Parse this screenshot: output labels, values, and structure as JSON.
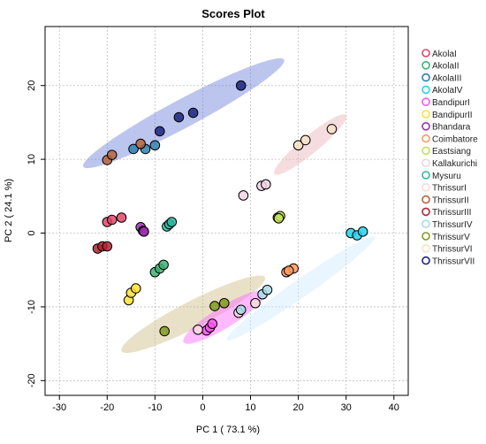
{
  "chart_data": {
    "type": "scatter",
    "title": "Scores Plot",
    "xlabel": "PC 1 ( 73.1 %)",
    "ylabel": "PC 2 ( 24.1 %)",
    "xlim": [
      -33,
      43
    ],
    "ylim": [
      -22,
      28
    ],
    "xticks": [
      -30,
      -20,
      -10,
      0,
      10,
      20,
      30,
      40
    ],
    "yticks": [
      -20,
      -10,
      0,
      10,
      20
    ],
    "x_tick_labels": [
      "-30",
      "-20",
      "-10",
      "0",
      "10",
      "20",
      "30",
      "40"
    ],
    "y_tick_labels": [
      "-20",
      "-10",
      "0",
      "10",
      "20"
    ],
    "grid": true,
    "legend_position": "right",
    "ellipses": [
      {
        "color": "#6b7fd7",
        "from": [
          -25,
          9
        ],
        "to": [
          17,
          23.5
        ],
        "width": 1.6
      },
      {
        "color": "#e8b4b8",
        "from": [
          15,
          8
        ],
        "to": [
          30,
          16
        ],
        "width": 1.0
      },
      {
        "color": "#cdbd86",
        "from": [
          -17,
          -16
        ],
        "to": [
          13,
          -6
        ],
        "width": 1.5
      },
      {
        "color": "#ff66ff",
        "from": [
          -4,
          -14.8
        ],
        "to": [
          13,
          -8
        ],
        "width": 1.2
      },
      {
        "color": "#cfe8ff",
        "from": [
          5,
          -14.5
        ],
        "to": [
          36,
          -0.5
        ],
        "width": 1.0
      }
    ],
    "series": [
      {
        "name": "AkolaI",
        "color": "#e0456a",
        "points": [
          [
            -20,
            1.5
          ],
          [
            -19,
            1.8
          ],
          [
            -17,
            2.1
          ]
        ]
      },
      {
        "name": "AkolaII",
        "color": "#3cb371",
        "points": [
          [
            -10,
            -5.3
          ],
          [
            -9,
            -4.8
          ],
          [
            -8.2,
            -4.3
          ]
        ]
      },
      {
        "name": "AkolaIII",
        "color": "#2f7fb0",
        "points": [
          [
            -10,
            11.9
          ],
          [
            -12,
            11.4
          ],
          [
            -14.5,
            11.4
          ]
        ]
      },
      {
        "name": "AkolaIV",
        "color": "#22d3ee",
        "points": [
          [
            31,
            0
          ],
          [
            32.3,
            -0.3
          ],
          [
            33.5,
            0.2
          ]
        ]
      },
      {
        "name": "BandipurI",
        "color": "#ff55ee",
        "points": [
          [
            0.8,
            -13.2
          ],
          [
            1.5,
            -12.8
          ],
          [
            2,
            -12.3
          ]
        ]
      },
      {
        "name": "BandipurII",
        "color": "#ffe033",
        "points": [
          [
            -15.5,
            -9.1
          ],
          [
            -15,
            -8.1
          ],
          [
            -14,
            -7.5
          ]
        ]
      },
      {
        "name": "Bhandara",
        "color": "#9b2fae",
        "points": [
          [
            -13,
            0.8
          ],
          [
            -12.5,
            0.3
          ],
          [
            -12.3,
            0.2
          ]
        ]
      },
      {
        "name": "Coimbatore",
        "color": "#ff9a62",
        "points": [
          [
            17.5,
            -5.3
          ],
          [
            19,
            -4.8
          ],
          [
            18,
            -5.1
          ]
        ]
      },
      {
        "name": "Eastsiang",
        "color": "#bfe05a",
        "points": [
          [
            15.7,
            2.1
          ],
          [
            16.2,
            2.3
          ],
          [
            15.9,
            2.0
          ]
        ]
      },
      {
        "name": "Kallakurichi",
        "color": "#f0d2e8",
        "points": [
          [
            8.5,
            5.1
          ],
          [
            12.3,
            6.4
          ],
          [
            13.2,
            6.6
          ]
        ]
      },
      {
        "name": "Mysuru",
        "color": "#2fb7a0",
        "points": [
          [
            -7.5,
            0.9
          ],
          [
            -7,
            1.2
          ],
          [
            -6.5,
            1.5
          ]
        ]
      },
      {
        "name": "ThrissurI",
        "color": "#fadadd",
        "points": [
          [
            -1,
            -13.1
          ],
          [
            11,
            -9.5
          ],
          [
            7.5,
            -10.8
          ]
        ]
      },
      {
        "name": "ThrissurII",
        "color": "#b5643c",
        "points": [
          [
            -20,
            9.9
          ],
          [
            -19,
            10.6
          ],
          [
            -13,
            12.1
          ]
        ]
      },
      {
        "name": "ThrissurIII",
        "color": "#b22233",
        "points": [
          [
            -22,
            -2.1
          ],
          [
            -21,
            -1.8
          ],
          [
            -20,
            -1.8
          ]
        ]
      },
      {
        "name": "ThrissurIV",
        "color": "#a8dde9",
        "points": [
          [
            12.5,
            -8.3
          ],
          [
            13.5,
            -7.7
          ],
          [
            8,
            -10.4
          ]
        ]
      },
      {
        "name": "ThrissurV",
        "color": "#7f9a1c",
        "points": [
          [
            -8,
            -13.3
          ],
          [
            2.5,
            -9.9
          ],
          [
            4.5,
            -9.5
          ]
        ]
      },
      {
        "name": "ThrissurVI",
        "color": "#f7e2c8",
        "points": [
          [
            20,
            11.9
          ],
          [
            21.5,
            12.6
          ],
          [
            27,
            14.1
          ]
        ]
      },
      {
        "name": "ThrissurVII",
        "color": "#1a237e",
        "points": [
          [
            -9,
            13.8
          ],
          [
            -2,
            16.3
          ],
          [
            -5,
            15.7
          ],
          [
            8,
            20
          ]
        ]
      }
    ]
  }
}
